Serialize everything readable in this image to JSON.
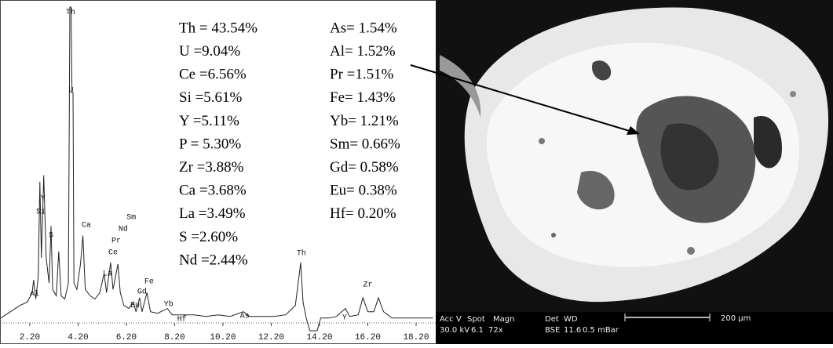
{
  "chart_data": {
    "type": "line",
    "x": [
      1.0,
      1.4,
      1.8,
      2.1,
      2.3,
      2.36,
      2.45,
      2.55,
      2.62,
      2.68,
      2.78,
      2.88,
      3.0,
      3.08,
      3.15,
      3.3,
      3.4,
      3.5,
      3.65,
      3.8,
      3.86,
      3.91,
      3.95,
      3.99,
      4.03,
      4.15,
      4.3,
      4.4,
      4.5,
      4.7,
      4.9,
      5.1,
      5.28,
      5.38,
      5.55,
      5.65,
      5.85,
      5.95,
      6.1,
      6.3,
      6.5,
      6.6,
      6.75,
      6.85,
      7.05,
      7.2,
      7.5,
      7.9,
      8.1,
      8.5,
      9.0,
      9.5,
      10.0,
      10.5,
      11.05,
      11.3,
      11.8,
      12.3,
      12.8,
      13.2,
      13.35,
      13.42,
      13.52,
      13.65,
      13.8,
      14.1,
      14.25,
      14.6,
      14.9,
      15.27,
      15.45,
      15.8,
      16.0,
      16.2,
      16.45,
      16.64,
      16.85,
      17.2,
      17.6,
      18.0,
      18.5,
      18.9
    ],
    "values": [
      1,
      3,
      5,
      6,
      9,
      13,
      7,
      14,
      44,
      20,
      46,
      20,
      12,
      30,
      10,
      8,
      22,
      8,
      7,
      12,
      99,
      99,
      72,
      72,
      12,
      10,
      18,
      27,
      10,
      8,
      7,
      9,
      15,
      9,
      18.5,
      10,
      18,
      9,
      5,
      4,
      6,
      3,
      7.4,
      3,
      9,
      3,
      2.5,
      4,
      2,
      2,
      2,
      1.5,
      2,
      1.5,
      3,
      1.5,
      1.5,
      1.5,
      2,
      5,
      14,
      18.5,
      6,
      1,
      -3,
      -3,
      1,
      1,
      1.5,
      4,
      1.5,
      2,
      7.4,
      3,
      3,
      7.4,
      3,
      1,
      1,
      1,
      1,
      1
    ],
    "color": "#222222",
    "xlim": [
      1.0,
      18.9
    ],
    "ylim": [
      -4,
      100
    ],
    "xticks": [
      {
        "value": 2.2,
        "label": "2.20"
      },
      {
        "value": 4.2,
        "label": "4.20"
      },
      {
        "value": 6.2,
        "label": "6.20"
      },
      {
        "value": 8.2,
        "label": "8.20"
      },
      {
        "value": 10.2,
        "label": "10.20"
      },
      {
        "value": 12.2,
        "label": "12.20"
      },
      {
        "value": 14.2,
        "label": "14.20"
      },
      {
        "value": 16.2,
        "label": "16.20"
      },
      {
        "value": 18.2,
        "label": "18.20"
      }
    ],
    "annotations": [
      {
        "text": "Th",
        "x": 3.89,
        "y": 97.5
      },
      {
        "text": "U",
        "x": 3.91,
        "y": 72.8
      },
      {
        "text": "Y",
        "x": 2.75,
        "y": 38.8
      },
      {
        "text": "Si",
        "x": 2.66,
        "y": 34.6
      },
      {
        "text": "S",
        "x": 3.08,
        "y": 27.2
      },
      {
        "text": "Al",
        "x": 2.4,
        "y": 8.6
      },
      {
        "text": "Ca",
        "x": 4.54,
        "y": 30.4
      },
      {
        "text": "Sm",
        "x": 6.4,
        "y": 32.8
      },
      {
        "text": "Nd",
        "x": 6.07,
        "y": 29.1
      },
      {
        "text": "Pr",
        "x": 5.78,
        "y": 25.4
      },
      {
        "text": "Ce",
        "x": 5.65,
        "y": 21.7
      },
      {
        "text": "La",
        "x": 5.42,
        "y": 15.1
      },
      {
        "text": "Eu",
        "x": 6.56,
        "y": 5
      },
      {
        "text": "Gd",
        "x": 6.85,
        "y": 9.4
      },
      {
        "text": "Fe",
        "x": 7.14,
        "y": 12.6
      },
      {
        "text": "Yb",
        "x": 7.95,
        "y": 5.4
      },
      {
        "text": "Hf",
        "x": 8.5,
        "y": 0.7
      },
      {
        "text": "As",
        "x": 11.1,
        "y": 1.7
      },
      {
        "text": "Th",
        "x": 13.45,
        "y": 21.5
      },
      {
        "text": "Y",
        "x": 15.24,
        "y": 1.2
      },
      {
        "text": "Zr",
        "x": 16.2,
        "y": 11.6
      }
    ]
  },
  "composition": {
    "left": [
      "Th = 43.54%",
      "U  =9.04%",
      "Ce =6.56%",
      "Si  =5.61%",
      "Y   =5.11%",
      "P   = 5.30%",
      "Zr  =3.88%",
      "Ca =3.68%",
      "La =3.49%",
      "S   =2.60%",
      "Nd =2.44%"
    ],
    "right": [
      "As= 1.54%",
      "Al= 1.52%",
      "Pr =1.51%",
      "Fe= 1.43%",
      "Yb= 1.21%",
      "Sm= 0.66%",
      "Gd= 0.58%",
      "Eu= 0.38%",
      "Hf= 0.20%"
    ]
  },
  "sem": {
    "row1": [
      "Acc V",
      "Spot",
      "Magn",
      "Det",
      "WD"
    ],
    "row2": [
      "30.0 kV",
      "6.1",
      "72x",
      "BSE",
      "11.6",
      "0.5 mBar"
    ],
    "scale": "200 µm"
  }
}
